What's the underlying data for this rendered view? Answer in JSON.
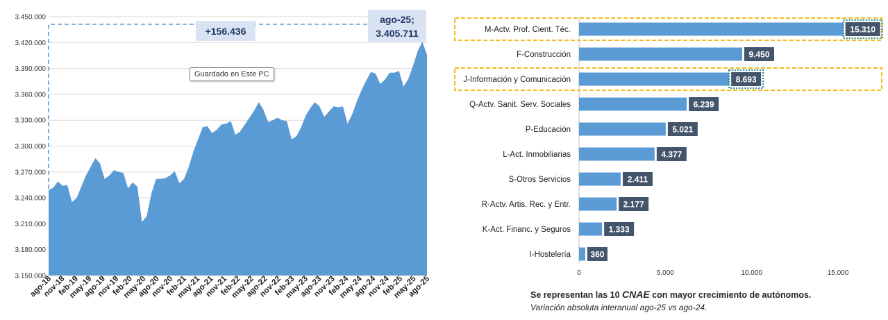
{
  "colors": {
    "area": "#5b9bd5",
    "bar": "#5b9bd5",
    "label_box": "#44546a",
    "highlight": "#f0b400",
    "dotted": "#2e8b8b",
    "dashed": "#5b9bd5"
  },
  "tooltip": "Guardado en Este PC",
  "footnote": {
    "line1_pre": "Se representan las 10 ",
    "line1_em": "CNAE",
    "line1_post": " con mayor crecimiento de autónomos.",
    "line2": "Variación absoluta interanual ago-25 vs ago-24."
  },
  "chart_data": [
    {
      "type": "area",
      "ylim": [
        3150000,
        3450000
      ],
      "y_ticks": [
        "3.150.000",
        "3.180.000",
        "3.210.000",
        "3.240.000",
        "3.270.000",
        "3.300.000",
        "3.330.000",
        "3.360.000",
        "3.390.000",
        "3.420.000",
        "3.450.000"
      ],
      "x_ticks": [
        "ago-18",
        "nov-18",
        "feb-19",
        "may-19",
        "ago-19",
        "nov-19",
        "feb-20",
        "may-20",
        "ago-20",
        "nov-20",
        "feb-21",
        "may-21",
        "ago-21",
        "nov-21",
        "feb-22",
        "may-22",
        "ago-22",
        "nov-22",
        "feb-23",
        "may-23",
        "ago-23",
        "nov-23",
        "feb-24",
        "may-24",
        "ago-24",
        "nov-24",
        "feb-25",
        "may-25",
        "ago-25"
      ],
      "values": [
        3249000,
        3252000,
        3259000,
        3254000,
        3255000,
        3235000,
        3240000,
        3253000,
        3266000,
        3276000,
        3286000,
        3280000,
        3262000,
        3266000,
        3272000,
        3270000,
        3269000,
        3251000,
        3258000,
        3253000,
        3212000,
        3219000,
        3245000,
        3262000,
        3262000,
        3263000,
        3266000,
        3271000,
        3257000,
        3262000,
        3276000,
        3294000,
        3308000,
        3322000,
        3323000,
        3315000,
        3319000,
        3325000,
        3326000,
        3329000,
        3313000,
        3317000,
        3325000,
        3333000,
        3341000,
        3351000,
        3342000,
        3328000,
        3330000,
        3333000,
        3330000,
        3329000,
        3308000,
        3311000,
        3321000,
        3335000,
        3344000,
        3351000,
        3346000,
        3334000,
        3340000,
        3346000,
        3345000,
        3346000,
        3326000,
        3337000,
        3352000,
        3365000,
        3376000,
        3386000,
        3384000,
        3372000,
        3377000,
        3385000,
        3385000,
        3387000,
        3369000,
        3378000,
        3393000,
        3410000,
        3421000,
        3405711
      ],
      "annotation_diff": "+156.436",
      "annotation_last_label": "ago-25;",
      "annotation_last_value": "3.405.711"
    },
    {
      "type": "bar",
      "orientation": "horizontal",
      "xlim": [
        0,
        15000
      ],
      "x_ticks": [
        "0",
        "5.000",
        "10.000",
        "15.000"
      ],
      "categories": [
        "M-Actv. Prof. Cient. Téc.",
        "F-Construcción",
        "J-Información y Comunicación",
        "Q-Actv. Sanit. Serv. Sociales",
        "P-Educación",
        "L-Act. Inmobiliarias",
        "S-Otros Servicios",
        "R-Actv. Artis. Rec. y Entr.",
        "K-Act. Financ. y Seguros",
        "I-Hostelería"
      ],
      "values": [
        15310,
        9450,
        8693,
        6239,
        5021,
        4377,
        2411,
        2177,
        1333,
        360
      ],
      "value_labels": [
        "15.310",
        "9.450",
        "8.693",
        "6.239",
        "5.021",
        "4.377",
        "2.411",
        "2.177",
        "1.333",
        "360"
      ],
      "highlighted": [
        0,
        2
      ]
    }
  ]
}
